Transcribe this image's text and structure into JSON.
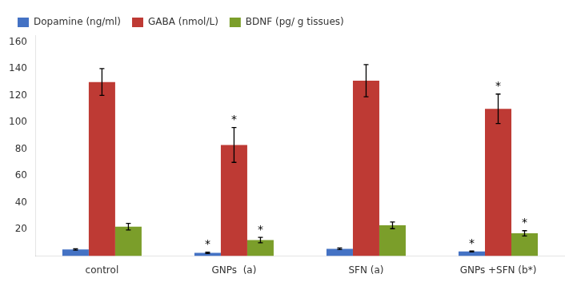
{
  "chart_data": {
    "type": "bar",
    "categories": [
      "control",
      "GNPs  (a)",
      "SFN (a)",
      "GNPs +SFN (b*)"
    ],
    "series": [
      {
        "name": "Dopamine (ng/ml)",
        "color": "#4472C4",
        "values": [
          5.0,
          2.5,
          5.5,
          3.5
        ],
        "errors": [
          0.5,
          0.5,
          0.6,
          0.4
        ],
        "annotations": [
          null,
          "*",
          null,
          "*"
        ]
      },
      {
        "name": "GABA (nmol/L)",
        "color": "#BE3A34",
        "values": [
          130,
          83,
          131,
          110
        ],
        "errors": [
          10,
          13,
          12,
          11
        ],
        "annotations": [
          null,
          "*",
          null,
          "*"
        ]
      },
      {
        "name": "BDNF (pg/ g tissues)",
        "color": "#7B9E2A",
        "values": [
          22,
          12,
          23,
          17
        ],
        "errors": [
          2.5,
          2.0,
          2.5,
          2.0
        ],
        "annotations": [
          null,
          "*",
          null,
          "*"
        ]
      }
    ],
    "ylim": [
      0,
      165
    ],
    "yticks": [
      20,
      40,
      60,
      80,
      100,
      120,
      140,
      160
    ],
    "grid": false,
    "legend": "upper left"
  }
}
